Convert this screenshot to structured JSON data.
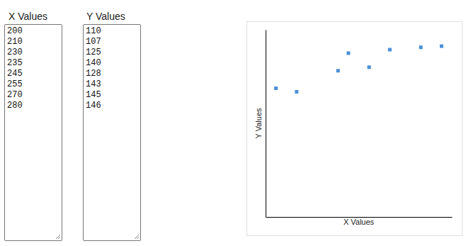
{
  "chart_data": {
    "type": "scatter",
    "x_label": "X Values",
    "y_label": "Y Values",
    "x": [
      200,
      210,
      230,
      235,
      245,
      255,
      270,
      280
    ],
    "values": [
      110,
      107,
      125,
      140,
      128,
      143,
      145,
      146
    ],
    "xlim": [
      195,
      285
    ],
    "ylim": [
      0,
      160
    ],
    "tick_labels": false,
    "grid": false,
    "color": "#4a8fdb",
    "marker": "square"
  }
}
